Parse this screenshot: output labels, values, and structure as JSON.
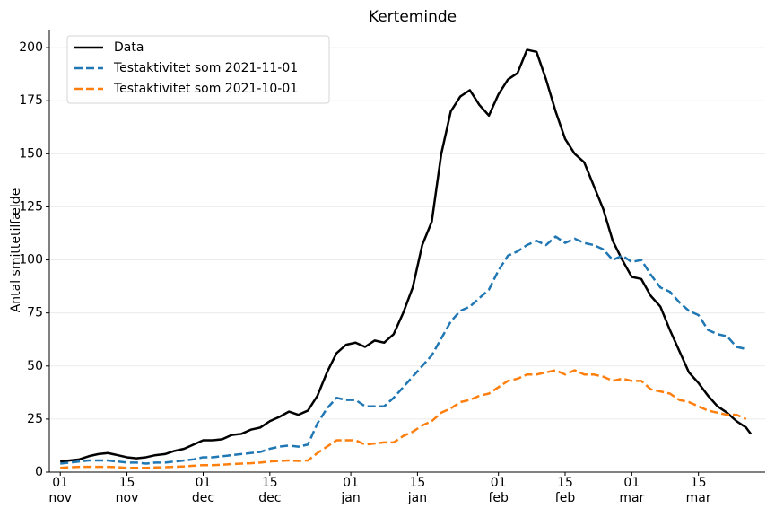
{
  "chart_data": {
    "type": "line",
    "title": "Kerteminde",
    "y_label": "Antal smittetilfælde",
    "x": [
      0,
      2,
      4,
      6,
      8,
      10,
      12,
      14,
      16,
      18,
      20,
      22,
      24,
      26,
      28,
      30,
      32,
      34,
      36,
      38,
      40,
      42,
      44,
      46,
      48,
      50,
      52,
      54,
      56,
      58,
      60,
      62,
      64,
      66,
      68,
      70,
      72,
      74,
      76,
      78,
      80,
      82,
      84,
      86,
      88,
      90,
      92,
      94,
      96,
      98,
      100,
      102,
      104,
      106,
      108,
      110,
      112,
      114,
      116,
      118,
      120,
      122,
      124,
      126,
      128,
      130,
      132,
      134,
      136,
      138,
      140,
      142,
      144,
      145
    ],
    "series": [
      {
        "name": "Data",
        "color": "#000000",
        "linestyle": "solid",
        "values": [
          5,
          5.5,
          6,
          7.5,
          8.5,
          9,
          8,
          7,
          6.5,
          7,
          8,
          8.5,
          10,
          11,
          13,
          15,
          15,
          15.5,
          17.5,
          18,
          20,
          21,
          24,
          26,
          28.5,
          27,
          29,
          36,
          47,
          56,
          60,
          61,
          59,
          62,
          61,
          65,
          75,
          87,
          107,
          118,
          150,
          170,
          177,
          180,
          173,
          168,
          178,
          185,
          188,
          199,
          198,
          185,
          170,
          157,
          150,
          146,
          135,
          124,
          109,
          100,
          92,
          91,
          83,
          78,
          67,
          57,
          47,
          42,
          36,
          31,
          28,
          24,
          21,
          18
        ]
      },
      {
        "name": "Testaktivitet som 2021-11-01",
        "color": "#1f77b4",
        "linestyle": "dashed",
        "values": [
          4,
          4.5,
          5,
          5.5,
          5.5,
          5.5,
          5,
          4.5,
          4.5,
          4,
          4.5,
          4.5,
          5,
          5.5,
          6,
          7,
          7,
          7.5,
          8,
          8.5,
          9,
          9.5,
          11,
          12,
          12.5,
          12,
          13,
          23,
          30,
          35,
          34,
          34,
          31,
          31,
          31,
          35,
          40,
          45,
          50,
          55,
          63,
          71,
          76,
          78,
          82,
          86,
          95,
          102,
          104,
          107,
          109,
          107,
          111,
          108,
          110,
          108,
          107,
          105,
          100,
          102,
          99,
          100,
          93,
          87,
          85,
          80,
          76,
          74,
          67,
          65,
          64,
          59,
          58,
          null
        ]
      },
      {
        "name": "Testaktivitet som 2021-10-01",
        "color": "#ff7f0e",
        "linestyle": "dashed",
        "values": [
          2,
          2.3,
          2.5,
          2.5,
          2.5,
          2.5,
          2.3,
          2,
          2,
          2,
          2.2,
          2.3,
          2.5,
          2.7,
          3,
          3.3,
          3.3,
          3.5,
          3.8,
          4,
          4.2,
          4.5,
          5,
          5.3,
          5.5,
          5.3,
          5.5,
          9,
          12,
          15,
          15,
          15,
          13,
          13.5,
          14,
          14,
          17,
          19,
          22,
          24,
          28,
          30,
          33,
          34,
          36,
          37,
          40,
          43,
          44,
          46,
          46,
          47,
          48,
          46,
          48,
          46,
          46,
          45,
          43,
          44,
          43,
          43,
          39,
          38,
          37,
          34,
          33,
          31,
          29,
          28,
          27,
          27,
          25,
          null
        ]
      }
    ],
    "xlim": [
      -2.3,
      148
    ],
    "xticks": [
      {
        "value": 0,
        "label": "01\nnov"
      },
      {
        "value": 14,
        "label": "15\nnov"
      },
      {
        "value": 30,
        "label": "01\ndec"
      },
      {
        "value": 44,
        "label": "15\ndec"
      },
      {
        "value": 61,
        "label": "01\njan"
      },
      {
        "value": 75,
        "label": "15\njan"
      },
      {
        "value": 92,
        "label": "01\nfeb"
      },
      {
        "value": 106,
        "label": "15\nfeb"
      },
      {
        "value": 120,
        "label": "01\nmar"
      },
      {
        "value": 134,
        "label": "15\nmar"
      }
    ],
    "ylim": [
      0,
      208.5
    ],
    "yticks": [
      0,
      25,
      50,
      75,
      100,
      125,
      150,
      175,
      200
    ],
    "grid": true,
    "legend": "upper left"
  }
}
